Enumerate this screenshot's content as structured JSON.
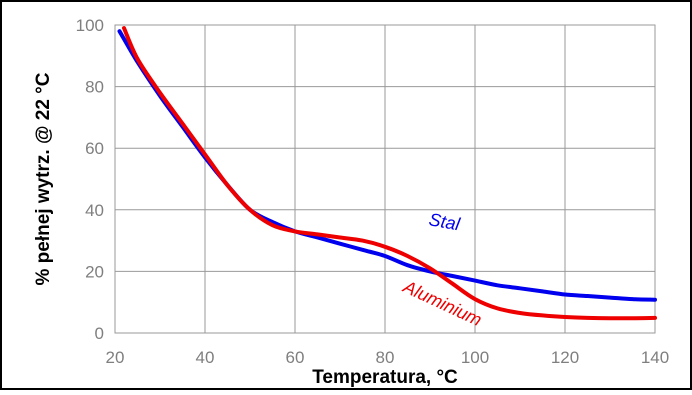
{
  "chart_data": {
    "type": "line",
    "xlabel": "Temperatura, °C",
    "ylabel": "% pełnej wytrz. @ 22 °C",
    "xlim": [
      20,
      140
    ],
    "ylim": [
      0,
      100
    ],
    "x_ticks": [
      20,
      40,
      60,
      80,
      100,
      120,
      140
    ],
    "y_ticks": [
      0,
      20,
      40,
      60,
      80,
      100
    ],
    "grid": true,
    "series": [
      {
        "name": "Stal",
        "color": "#0000ee",
        "x": [
          21,
          25,
          30,
          35,
          40,
          45,
          50,
          55,
          60,
          65,
          70,
          75,
          80,
          85,
          90,
          95,
          100,
          105,
          110,
          115,
          120,
          125,
          130,
          135,
          140
        ],
        "y": [
          98,
          88,
          77,
          67,
          57,
          48,
          40,
          36,
          33,
          31,
          29,
          27,
          25,
          22,
          20,
          18.5,
          17,
          15.5,
          14.5,
          13.5,
          12.5,
          12,
          11.5,
          11,
          10.8
        ]
      },
      {
        "name": "Aluminium",
        "color": "#ee0000",
        "x": [
          22,
          25,
          30,
          35,
          40,
          45,
          50,
          55,
          60,
          65,
          70,
          75,
          80,
          85,
          90,
          95,
          100,
          105,
          110,
          115,
          120,
          125,
          130,
          135,
          140
        ],
        "y": [
          99,
          89,
          78,
          68,
          58,
          48,
          40,
          35,
          33,
          32,
          31,
          30,
          28,
          25,
          21,
          16,
          11,
          8,
          6.5,
          5.7,
          5.2,
          4.9,
          4.8,
          4.8,
          4.9
        ]
      }
    ]
  }
}
